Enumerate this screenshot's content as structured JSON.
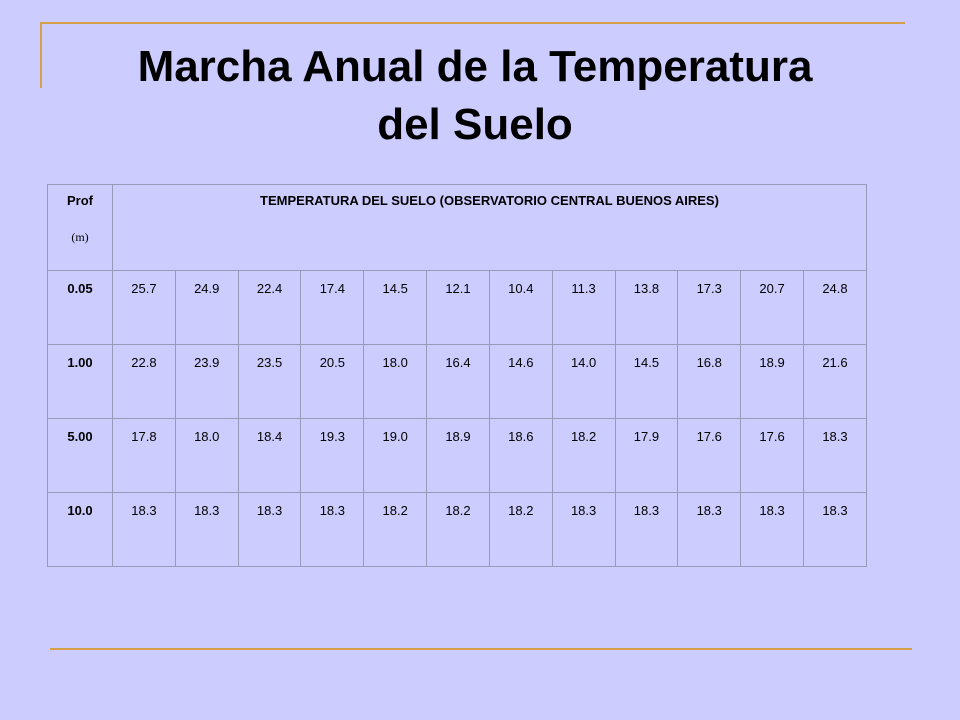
{
  "title_line1": "Marcha Anual de la Temperatura",
  "title_line2": "del Suelo",
  "table": {
    "prof_label": "Prof",
    "prof_unit": "(m)",
    "header": "TEMPERATURA DEL SUELO (OBSERVATORIO CENTRAL BUENOS AIRES)",
    "rows": [
      {
        "depth": "0.05",
        "values": [
          "25.7",
          "24.9",
          "22.4",
          "17.4",
          "14.5",
          "12.1",
          "10.4",
          "11.3",
          "13.8",
          "17.3",
          "20.7",
          "24.8"
        ]
      },
      {
        "depth": "1.00",
        "values": [
          "22.8",
          "23.9",
          "23.5",
          "20.5",
          "18.0",
          "16.4",
          "14.6",
          "14.0",
          "14.5",
          "16.8",
          "18.9",
          "21.6"
        ]
      },
      {
        "depth": "5.00",
        "values": [
          "17.8",
          "18.0",
          "18.4",
          "19.3",
          "19.0",
          "18.9",
          "18.6",
          "18.2",
          "17.9",
          "17.6",
          "17.6",
          "18.3"
        ]
      },
      {
        "depth": "10.0",
        "values": [
          "18.3",
          "18.3",
          "18.3",
          "18.3",
          "18.2",
          "18.2",
          "18.2",
          "18.3",
          "18.3",
          "18.3",
          "18.3",
          "18.3"
        ]
      }
    ]
  },
  "colors": {
    "background": "#ccccff",
    "accent_line": "#d4a04a"
  }
}
